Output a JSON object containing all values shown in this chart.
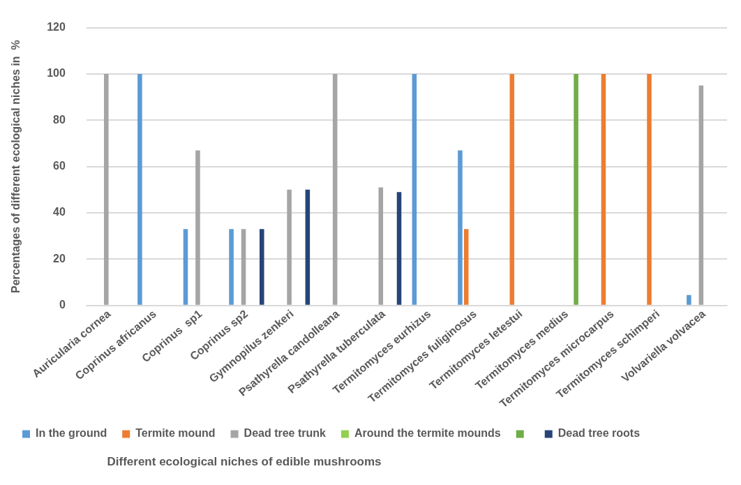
{
  "chart_data": {
    "type": "bar",
    "ylabel": "Percentages of different ecological niches in  %",
    "xlabel": "Different ecological niches of edible mushrooms",
    "categories": [
      "Auricularia cornea",
      "Coprinus africanus",
      "Coprinus  sp1",
      "Coprinus sp2",
      "Gymnopilus zenkeri",
      "Psathyrella candolleana",
      "Psathyrella tuberculata",
      "Termitomyces eurhizus",
      "Termitomyces fuliginosus",
      "Termitomyces letestui",
      "Termitomyces medius",
      "Termitomyces microcarpus",
      "Termitomyces schimperi",
      "Volvariella volvacea"
    ],
    "series": [
      {
        "name": "In the ground",
        "color": "#5b9bd5",
        "values": [
          null,
          100,
          33,
          33,
          null,
          null,
          null,
          100,
          67,
          null,
          null,
          null,
          null,
          4.5
        ]
      },
      {
        "name": "Termite mound",
        "color": "#ed7d31",
        "values": [
          null,
          null,
          null,
          null,
          null,
          null,
          null,
          null,
          33,
          100,
          null,
          100,
          100,
          null
        ]
      },
      {
        "name": "Dead tree trunk",
        "color": "#a5a5a5",
        "values": [
          100,
          null,
          67,
          33,
          50,
          100,
          51,
          null,
          null,
          null,
          null,
          null,
          null,
          95
        ]
      },
      {
        "name": "Around the termite mounds",
        "color": "#92d050",
        "values": [
          null,
          null,
          null,
          null,
          null,
          null,
          null,
          null,
          null,
          null,
          null,
          null,
          null,
          null
        ]
      },
      {
        "color": "#70ad47",
        "values": [
          null,
          null,
          null,
          null,
          null,
          null,
          null,
          null,
          null,
          null,
          100,
          null,
          null,
          null
        ]
      },
      {
        "name": "Dead tree roots",
        "color": "#264478",
        "values": [
          null,
          null,
          null,
          33,
          50,
          null,
          49,
          null,
          null,
          null,
          null,
          null,
          null,
          null
        ]
      }
    ],
    "ylim": [
      0,
      120
    ],
    "yticks": [
      0,
      20,
      40,
      60,
      80,
      100,
      120
    ],
    "grid": "y",
    "legend": "bottom"
  }
}
